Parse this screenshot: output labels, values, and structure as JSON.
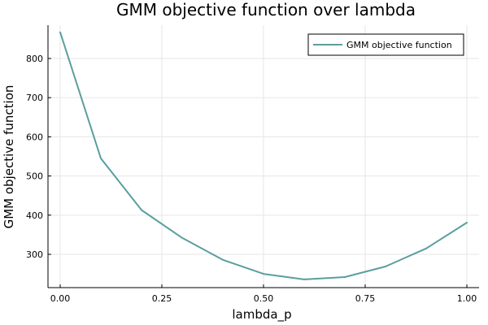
{
  "chart_data": {
    "type": "line",
    "title": "GMM objective function over lambda",
    "xlabel": "lambda_p",
    "ylabel": "GMM objective function",
    "xlim": [
      -0.03,
      1.03
    ],
    "ylim": [
      215,
      885
    ],
    "x_ticks": [
      {
        "value": 0.0,
        "label": "0.00"
      },
      {
        "value": 0.25,
        "label": "0.25"
      },
      {
        "value": 0.5,
        "label": "0.50"
      },
      {
        "value": 0.75,
        "label": "0.75"
      },
      {
        "value": 1.0,
        "label": "1.00"
      }
    ],
    "y_ticks": [
      {
        "value": 300,
        "label": "300"
      },
      {
        "value": 400,
        "label": "400"
      },
      {
        "value": 500,
        "label": "500"
      },
      {
        "value": 600,
        "label": "600"
      },
      {
        "value": 700,
        "label": "700"
      },
      {
        "value": 800,
        "label": "800"
      }
    ],
    "grid": true,
    "legend_position": "top-right",
    "series": [
      {
        "name": "GMM objective function",
        "color": "#5b9e9e",
        "x": [
          0.0,
          0.1,
          0.2,
          0.3,
          0.4,
          0.5,
          0.6,
          0.7,
          0.8,
          0.9,
          1.0
        ],
        "y": [
          867,
          545,
          413,
          342,
          286,
          250,
          236,
          242,
          269,
          315,
          381
        ]
      }
    ]
  }
}
